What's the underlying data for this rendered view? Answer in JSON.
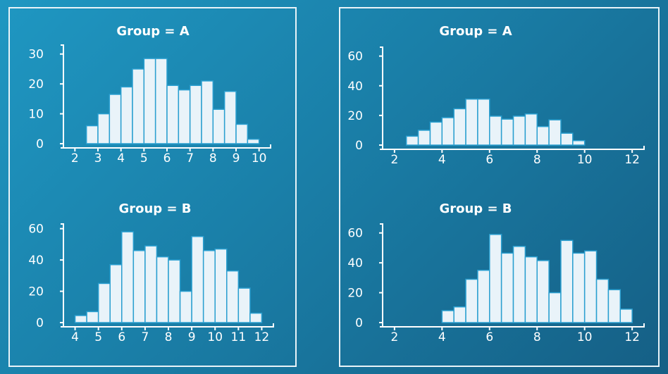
{
  "chart_data": [
    {
      "type": "bar",
      "title": "Group = A",
      "xlabel": "",
      "ylabel": "",
      "bin_width": 0.5,
      "xlim": [
        1.5,
        10.5
      ],
      "ylim": [
        0,
        33
      ],
      "xticks": [
        2,
        3,
        4,
        5,
        6,
        7,
        8,
        9,
        10
      ],
      "yticks": [
        0,
        10,
        20,
        30
      ],
      "bin_starts": [
        2.5,
        3.0,
        3.5,
        4.0,
        4.5,
        5.0,
        5.5,
        6.0,
        6.5,
        7.0,
        7.5,
        8.0,
        8.5,
        9.0,
        9.5
      ],
      "values": [
        6,
        10,
        16.5,
        19,
        25,
        28.5,
        28.5,
        19.5,
        18,
        19.5,
        21,
        11.5,
        17.5,
        6.5,
        1.5
      ]
    },
    {
      "type": "bar",
      "title": "Group = A",
      "xlabel": "",
      "ylabel": "",
      "bin_width": 0.5,
      "xlim": [
        1.5,
        12.5
      ],
      "ylim": [
        0,
        66
      ],
      "xticks": [
        2,
        4,
        6,
        8,
        10,
        12
      ],
      "yticks": [
        0,
        20,
        40,
        60
      ],
      "bin_starts": [
        2.5,
        3.0,
        3.5,
        4.0,
        4.5,
        5.0,
        5.5,
        6.0,
        6.5,
        7.0,
        7.5,
        8.0,
        8.5,
        9.0,
        9.5
      ],
      "values": [
        6,
        10,
        15.5,
        18.5,
        24.5,
        31,
        31,
        19.5,
        17.5,
        19.5,
        21,
        12.5,
        17,
        8,
        3
      ]
    },
    {
      "type": "bar",
      "title": "Group = B",
      "xlabel": "",
      "ylabel": "",
      "bin_width": 0.5,
      "xlim": [
        3.5,
        12.5
      ],
      "ylim": [
        0,
        63
      ],
      "xticks": [
        4,
        5,
        6,
        7,
        8,
        9,
        10,
        11,
        12
      ],
      "yticks": [
        0,
        20,
        40,
        60
      ],
      "bin_starts": [
        4.0,
        4.5,
        5.0,
        5.5,
        6.0,
        6.5,
        7.0,
        7.5,
        8.0,
        8.5,
        9.0,
        9.5,
        10.0,
        10.5,
        11.0,
        11.5
      ],
      "values": [
        4.5,
        7,
        25,
        37,
        58,
        46,
        49,
        42,
        40,
        20,
        55,
        46,
        47,
        33,
        22,
        6
      ]
    },
    {
      "type": "bar",
      "title": "Group = B",
      "xlabel": "",
      "ylabel": "",
      "bin_width": 0.5,
      "xlim": [
        1.5,
        12.5
      ],
      "ylim": [
        0,
        66
      ],
      "xticks": [
        2,
        4,
        6,
        8,
        10,
        12
      ],
      "yticks": [
        0,
        20,
        40,
        60
      ],
      "bin_starts": [
        4.0,
        4.5,
        5.0,
        5.5,
        6.0,
        6.5,
        7.0,
        7.5,
        8.0,
        8.5,
        9.0,
        9.5,
        10.0,
        10.5,
        11.0,
        11.5
      ],
      "values": [
        8,
        10.5,
        29,
        35,
        59,
        46.5,
        51,
        44,
        41.5,
        20,
        55,
        46.5,
        48,
        29,
        22,
        9
      ]
    }
  ]
}
